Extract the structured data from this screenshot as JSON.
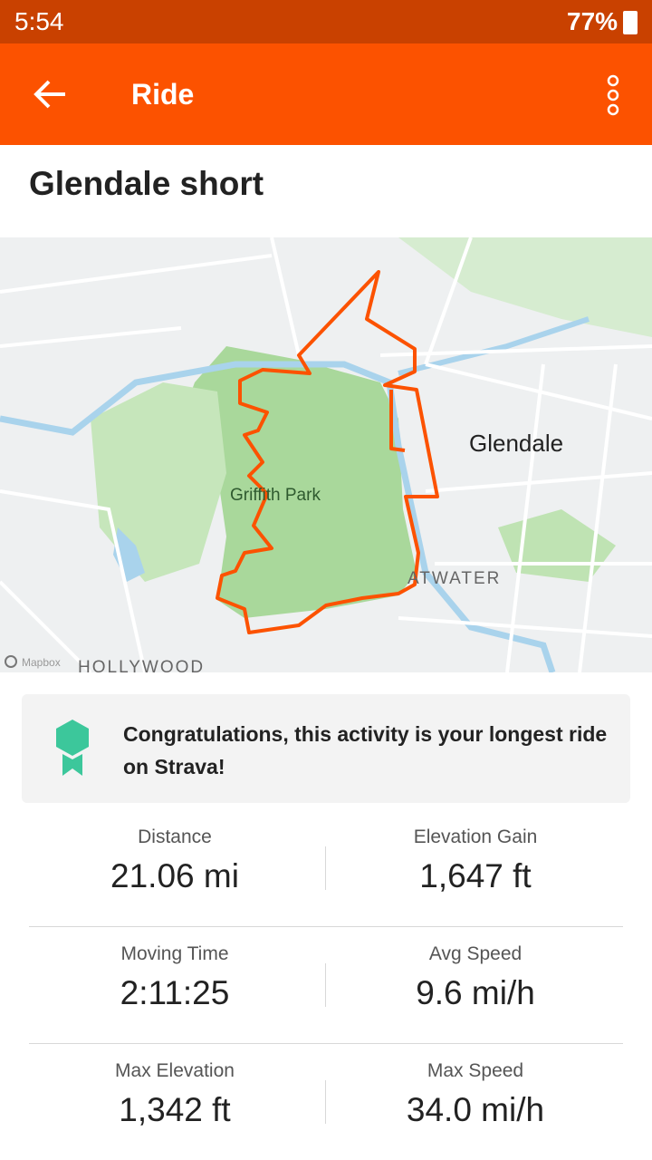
{
  "status_bar": {
    "time": "5:54",
    "battery": "77%"
  },
  "header": {
    "title": "Ride"
  },
  "activity": {
    "title": "Glendale short"
  },
  "map": {
    "labels": {
      "glendale": "Glendale",
      "park": "Griffith Park",
      "atwater": "ATWATER",
      "hollywood": "HOLLYWOOD",
      "attribution": "Mapbox"
    }
  },
  "banner": {
    "text": "Congratulations, this activity is your longest ride on Strava!"
  },
  "stats": [
    {
      "label": "Distance",
      "value": "21.06 mi"
    },
    {
      "label": "Elevation Gain",
      "value": "1,647 ft"
    },
    {
      "label": "Moving Time",
      "value": "2:11:25"
    },
    {
      "label": "Avg Speed",
      "value": "9.6 mi/h"
    },
    {
      "label": "Max Elevation",
      "value": "1,342 ft"
    },
    {
      "label": "Max Speed",
      "value": "34.0 mi/h"
    }
  ]
}
